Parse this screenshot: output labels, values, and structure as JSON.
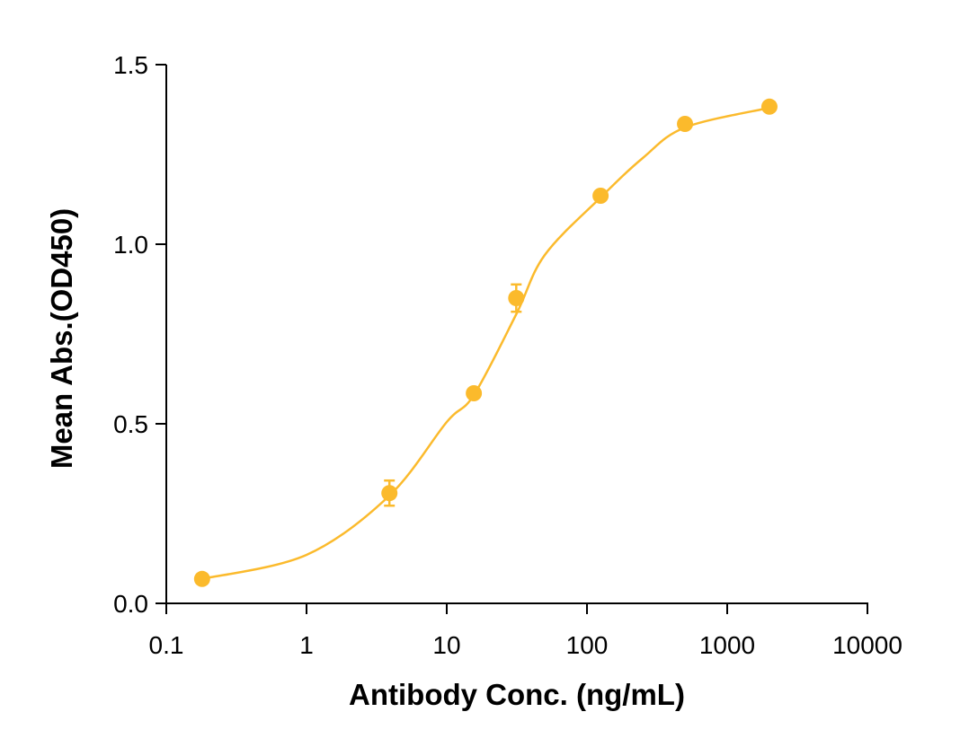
{
  "chart_data": {
    "type": "scatter",
    "x_label": "Antibody Conc. (ng/mL)",
    "y_label": "Mean Abs.(OD450)",
    "x_scale": "log",
    "xlim": [
      0.1,
      10000
    ],
    "xticks": [
      0.1,
      1,
      10,
      100,
      1000,
      10000
    ],
    "ylim": [
      0,
      1.5
    ],
    "yticks": [
      {
        "value": 0,
        "label": "0.0"
      },
      {
        "value": 0.5,
        "label": "0.5"
      },
      {
        "value": 1,
        "label": "1.0"
      },
      {
        "value": 1.5,
        "label": "1.5"
      }
    ],
    "color": "#fbba2c",
    "x": [
      0.18,
      3.9,
      15.6,
      31.3,
      125,
      500,
      2000
    ],
    "values": [
      0.068,
      0.307,
      0.585,
      0.85,
      1.135,
      1.335,
      1.383
    ],
    "errors": [
      0,
      0.035,
      0,
      0.038,
      0,
      0,
      0
    ],
    "curve": {
      "x": [
        0.18,
        1,
        3.9,
        10,
        15.6,
        31.3,
        50,
        125,
        250,
        500,
        2000
      ],
      "values": [
        0.068,
        0.135,
        0.3,
        0.505,
        0.58,
        0.805,
        0.97,
        1.13,
        1.24,
        1.325,
        1.38
      ]
    }
  }
}
